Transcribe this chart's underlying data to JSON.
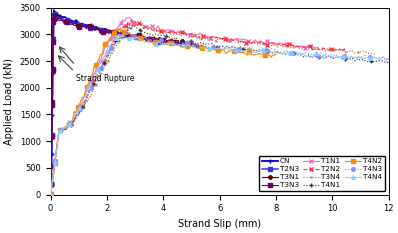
{
  "xlabel": "Strand Slip (mm)",
  "ylabel": "Applied Load (kN)",
  "xlim": [
    0,
    12
  ],
  "ylim": [
    0,
    3500
  ],
  "xticks": [
    0,
    2,
    4,
    6,
    8,
    10,
    12
  ],
  "yticks": [
    0,
    500,
    1000,
    1500,
    2000,
    2500,
    3000,
    3500
  ],
  "series_order": [
    "CN",
    "T2N3",
    "T3N1",
    "T3N3",
    "T1N1",
    "T2N2",
    "T3N4",
    "T4N1",
    "T4N2",
    "T4N3",
    "T4N4"
  ],
  "series": {
    "CN": {
      "color": "#0000CC",
      "linestyle": "-",
      "marker": "+",
      "markersize": 3.5,
      "linewidth": 1.3,
      "markevery": 12
    },
    "T1N1": {
      "color": "#FF66CC",
      "linestyle": "-",
      "marker": "x",
      "markersize": 3,
      "linewidth": 0.8,
      "markevery": 10
    },
    "T2N2": {
      "color": "#FF3333",
      "linestyle": "--",
      "marker": "x",
      "markersize": 3,
      "linewidth": 0.8,
      "markevery": 10
    },
    "T2N3": {
      "color": "#3333FF",
      "linestyle": "-",
      "marker": "s",
      "markersize": 2.5,
      "linewidth": 1.1,
      "markevery": 10
    },
    "T3N1": {
      "color": "#660000",
      "linestyle": "-",
      "marker": "o",
      "markersize": 2.5,
      "linewidth": 0.8,
      "markevery": 10
    },
    "T3N3": {
      "color": "#660066",
      "linestyle": "-",
      "marker": "s",
      "markersize": 2.5,
      "linewidth": 0.8,
      "markevery": 10
    },
    "T3N4": {
      "color": "#996633",
      "linestyle": ":",
      "marker": ".",
      "markersize": 1,
      "linewidth": 0.8,
      "markevery": 10
    },
    "T4N1": {
      "color": "#333333",
      "linestyle": ":",
      "marker": "+",
      "markersize": 3.5,
      "linewidth": 0.8,
      "markevery": 10
    },
    "T4N2": {
      "color": "#FF8800",
      "linestyle": "-",
      "marker": "s",
      "markersize": 2.5,
      "linewidth": 0.8,
      "markevery": 10
    },
    "T4N3": {
      "color": "#8888FF",
      "linestyle": ":",
      "marker": "o",
      "markersize": 2.5,
      "linewidth": 0.8,
      "markevery": 10
    },
    "T4N4": {
      "color": "#88CCFF",
      "linestyle": "-",
      "marker": "^",
      "markersize": 2.5,
      "linewidth": 0.8,
      "markevery": 10
    }
  },
  "legend_fontsize": 5.2,
  "axis_fontsize": 7,
  "tick_fontsize": 6
}
